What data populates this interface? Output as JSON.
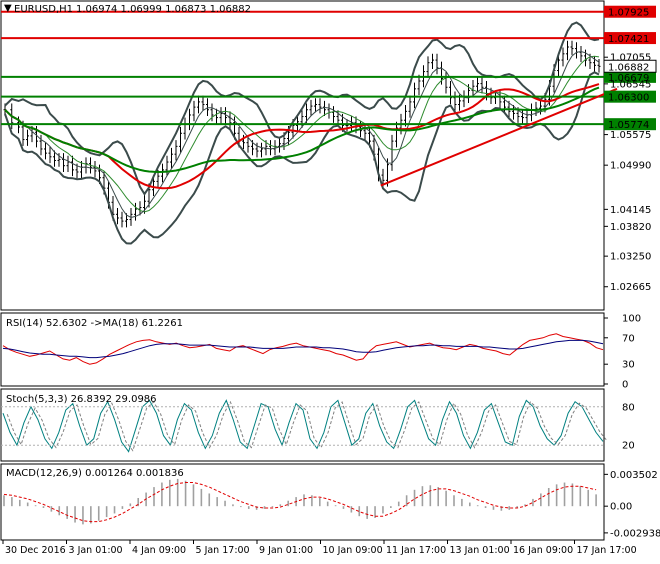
{
  "header": {
    "symbol": "EURUSD,H1",
    "ohlc": "1.06974 1.06999 1.06873 1.06882"
  },
  "colors": {
    "price_bar": "#000000",
    "bollinger": "#3b4b4b",
    "ma_short": "#2e8b2e",
    "ma_red": "#e00000",
    "ma_green": "#008000",
    "support_line": "#008000",
    "resistance_line": "#e00000",
    "trend_line": "#e00000",
    "rsi_main": "#e00000",
    "rsi_ma": "#00007a",
    "stoch_main": "#008080",
    "macd_hist": "#a0a0a0",
    "macd_signal": "#e00000"
  },
  "chart_data": [
    {
      "type": "line",
      "name": "price",
      "title": "EURUSD,H1",
      "ylim": [
        1.0222,
        1.0813
      ],
      "y_ticks": [
        "1.07055",
        "1.06545",
        "1.05575",
        "1.04990",
        "1.04145",
        "1.03820",
        "1.03250",
        "1.02665"
      ],
      "price_path": [
        [
          0,
          1.0605
        ],
        [
          3,
          1.058
        ],
        [
          6,
          1.0572
        ],
        [
          8,
          1.0548
        ],
        [
          10,
          1.0555
        ],
        [
          12,
          1.0562
        ],
        [
          14,
          1.0545
        ],
        [
          16,
          1.053
        ],
        [
          18,
          1.0522
        ],
        [
          20,
          1.0515
        ],
        [
          22,
          1.0508
        ],
        [
          24,
          1.051
        ],
        [
          26,
          1.0498
        ],
        [
          28,
          1.0505
        ],
        [
          30,
          1.049
        ],
        [
          32,
          1.0486
        ],
        [
          34,
          1.0495
        ],
        [
          36,
          1.0502
        ],
        [
          38,
          1.0495
        ],
        [
          40,
          1.0488
        ],
        [
          42,
          1.0475
        ],
        [
          44,
          1.0455
        ],
        [
          46,
          1.0428
        ],
        [
          48,
          1.0405
        ],
        [
          50,
          1.0398
        ],
        [
          52,
          1.0392
        ],
        [
          54,
          1.0395
        ],
        [
          56,
          1.0405
        ],
        [
          58,
          1.0415
        ],
        [
          60,
          1.0418
        ],
        [
          62,
          1.043
        ],
        [
          64,
          1.0452
        ],
        [
          66,
          1.0468
        ],
        [
          68,
          1.0478
        ],
        [
          70,
          1.049
        ],
        [
          72,
          1.0505
        ],
        [
          74,
          1.052
        ],
        [
          76,
          1.0535
        ],
        [
          78,
          1.056
        ],
        [
          80,
          1.0578
        ],
        [
          82,
          1.0595
        ],
        [
          84,
          1.061
        ],
        [
          86,
          1.062
        ],
        [
          88,
          1.0615
        ],
        [
          90,
          1.0605
        ],
        [
          92,
          1.0595
        ],
        [
          94,
          1.059
        ],
        [
          96,
          1.0598
        ],
        [
          98,
          1.059
        ],
        [
          100,
          1.058
        ],
        [
          102,
          1.056
        ],
        [
          104,
          1.0545
        ],
        [
          106,
          1.0542
        ],
        [
          108,
          1.0535
        ],
        [
          110,
          1.053
        ],
        [
          112,
          1.0526
        ],
        [
          114,
          1.053
        ],
        [
          116,
          1.0535
        ],
        [
          118,
          1.053
        ],
        [
          120,
          1.0535
        ],
        [
          122,
          1.054
        ],
        [
          124,
          1.055
        ],
        [
          126,
          1.0562
        ],
        [
          128,
          1.0575
        ],
        [
          130,
          1.0582
        ],
        [
          132,
          1.0592
        ],
        [
          134,
          1.0605
        ],
        [
          136,
          1.0612
        ],
        [
          138,
          1.0615
        ],
        [
          140,
          1.061
        ],
        [
          142,
          1.0605
        ],
        [
          144,
          1.06
        ],
        [
          146,
          1.0592
        ],
        [
          148,
          1.0585
        ],
        [
          150,
          1.0575
        ],
        [
          152,
          1.0575
        ],
        [
          154,
          1.058
        ],
        [
          156,
          1.0572
        ],
        [
          158,
          1.0565
        ],
        [
          160,
          1.056
        ],
        [
          162,
          1.0545
        ],
        [
          164,
          1.052
        ],
        [
          166,
          1.048
        ],
        [
          168,
          1.047
        ],
        [
          170,
          1.05
        ],
        [
          172,
          1.0545
        ],
        [
          174,
          1.057
        ],
        [
          176,
          1.0585
        ],
        [
          178,
          1.0602
        ],
        [
          180,
          1.062
        ],
        [
          182,
          1.0645
        ],
        [
          184,
          1.066
        ],
        [
          186,
          1.0678
        ],
        [
          188,
          1.0695
        ],
        [
          190,
          1.07
        ],
        [
          192,
          1.0685
        ],
        [
          194,
          1.0665
        ],
        [
          196,
          1.0648
        ],
        [
          198,
          1.0628
        ],
        [
          200,
          1.0615
        ],
        [
          202,
          1.0622
        ],
        [
          204,
          1.063
        ],
        [
          206,
          1.0642
        ],
        [
          208,
          1.065
        ],
        [
          210,
          1.0655
        ],
        [
          212,
          1.0648
        ],
        [
          214,
          1.0635
        ],
        [
          216,
          1.0628
        ],
        [
          218,
          1.063
        ],
        [
          220,
          1.062
        ],
        [
          222,
          1.061
        ],
        [
          224,
          1.0602
        ],
        [
          226,
          1.0598
        ],
        [
          228,
          1.0592
        ],
        [
          230,
          1.059
        ],
        [
          232,
          1.0595
        ],
        [
          234,
          1.0605
        ],
        [
          236,
          1.0608
        ],
        [
          238,
          1.0612
        ],
        [
          240,
          1.0625
        ],
        [
          242,
          1.065
        ],
        [
          244,
          1.068
        ],
        [
          246,
          1.07
        ],
        [
          248,
          1.0712
        ],
        [
          250,
          1.0725
        ],
        [
          252,
          1.0722
        ],
        [
          254,
          1.0715
        ],
        [
          256,
          1.0708
        ],
        [
          258,
          1.07
        ],
        [
          260,
          1.0695
        ],
        [
          262,
          1.069
        ],
        [
          264,
          1.0688
        ]
      ],
      "levels": [
        {
          "label": "1.07925",
          "value": 1.07925,
          "color": "#e00000"
        },
        {
          "label": "1.07421",
          "value": 1.07421,
          "color": "#e00000"
        },
        {
          "label": "1.06679",
          "value": 1.06679,
          "color": "#008000"
        },
        {
          "label": "1.06300",
          "value": 1.063,
          "color": "#008000"
        },
        {
          "label": "1.05774",
          "value": 1.05774,
          "color": "#008000"
        }
      ],
      "current_price": "1.06882",
      "trend_line": [
        [
          167,
          1.046
        ],
        [
          272,
          1.0645
        ]
      ],
      "x_ticks": [
        "30 Dec 2016",
        "3 Jan 01:00",
        "4 Jan 09:00",
        "5 Jan 17:00",
        "9 Jan 01:00",
        "10 Jan 09:00",
        "11 Jan 17:00",
        "13 Jan 01:00",
        "16 Jan 09:00",
        "17 Jan 17:00"
      ]
    },
    {
      "type": "line",
      "name": "rsi",
      "title": "RSI(14) 52.6302  ->MA(18) 61.2261",
      "ylim": [
        0,
        100
      ],
      "y_ticks": [
        "100",
        "70",
        "30",
        "0"
      ],
      "values": [
        58,
        52,
        48,
        45,
        42,
        44,
        47,
        50,
        44,
        38,
        36,
        40,
        34,
        30,
        32,
        38,
        45,
        50,
        55,
        60,
        64,
        66,
        67,
        64,
        62,
        60,
        62,
        58,
        55,
        56,
        58,
        60,
        54,
        52,
        50,
        56,
        58,
        54,
        50,
        46,
        52,
        55,
        57,
        60,
        62,
        58,
        56,
        54,
        52,
        50,
        46,
        44,
        40,
        36,
        38,
        50,
        58,
        60,
        62,
        64,
        60,
        56,
        58,
        60,
        62,
        58,
        55,
        54,
        52,
        56,
        60,
        58,
        54,
        52,
        50,
        46,
        44,
        52,
        60,
        66,
        68,
        70,
        74,
        76,
        72,
        70,
        68,
        66,
        62,
        55,
        52
      ],
      "ma_values": [
        54,
        53,
        51,
        49,
        47,
        46,
        45,
        45,
        44,
        43,
        42,
        42,
        41,
        40,
        40,
        41,
        42,
        44,
        46,
        49,
        52,
        55,
        58,
        60,
        61,
        61,
        61,
        60,
        59,
        59,
        59,
        59,
        58,
        57,
        56,
        56,
        56,
        56,
        55,
        54,
        54,
        54,
        54,
        55,
        56,
        56,
        56,
        56,
        55,
        55,
        54,
        53,
        51,
        49,
        48,
        48,
        49,
        51,
        53,
        55,
        56,
        57,
        58,
        58,
        59,
        59,
        58,
        58,
        57,
        57,
        57,
        57,
        56,
        56,
        55,
        54,
        53,
        53,
        54,
        56,
        58,
        60,
        62,
        64,
        65,
        66,
        66,
        66,
        65,
        63,
        61
      ]
    },
    {
      "type": "line",
      "name": "stochastic",
      "title": "Stoch(5,3,3) 26.8392 29.0986",
      "ylim": [
        0,
        100
      ],
      "y_ticks": [
        "80",
        "20"
      ],
      "values": [
        70,
        40,
        20,
        55,
        80,
        60,
        30,
        15,
        40,
        75,
        85,
        50,
        20,
        30,
        70,
        88,
        60,
        25,
        10,
        45,
        80,
        90,
        70,
        35,
        20,
        60,
        85,
        75,
        40,
        15,
        35,
        70,
        90,
        60,
        25,
        15,
        50,
        85,
        80,
        45,
        20,
        55,
        85,
        75,
        30,
        15,
        40,
        80,
        90,
        55,
        20,
        30,
        70,
        85,
        50,
        25,
        15,
        45,
        80,
        90,
        60,
        30,
        20,
        60,
        88,
        70,
        35,
        15,
        40,
        75,
        85,
        55,
        25,
        20,
        65,
        90,
        80,
        50,
        30,
        20,
        35,
        70,
        88,
        80,
        60,
        40,
        26
      ]
    },
    {
      "type": "bar",
      "name": "macd",
      "title": "MACD(12,26,9) 0.001264 0.001836",
      "ylim": [
        -0.0035,
        0.0042
      ],
      "y_ticks": [
        "0.003502",
        "0.00",
        "-0.002938"
      ],
      "values": [
        0.0012,
        0.001,
        0.0007,
        0.0004,
        0.0001,
        -0.0002,
        -0.0006,
        -0.001,
        -0.0014,
        -0.0018,
        -0.002,
        -0.0019,
        -0.0016,
        -0.0012,
        -0.0008,
        -0.0003,
        0.0003,
        0.0009,
        0.0015,
        0.0021,
        0.0026,
        0.0029,
        0.003,
        0.0028,
        0.0024,
        0.0019,
        0.0014,
        0.001,
        0.0006,
        0.0002,
        -0.0001,
        -0.0003,
        -0.0004,
        -0.0003,
        -0.0001,
        0.0002,
        0.0006,
        0.001,
        0.0013,
        0.0012,
        0.0009,
        0.0005,
        0.0001,
        -0.0003,
        -0.0007,
        -0.0011,
        -0.0014,
        -0.0013,
        -0.0008,
        -0.0002,
        0.0005,
        0.0012,
        0.0018,
        0.0022,
        0.0023,
        0.0021,
        0.0017,
        0.0012,
        0.0008,
        0.0004,
        0.0001,
        -0.0002,
        -0.0004,
        -0.0005,
        -0.0004,
        -0.0002,
        0.0002,
        0.0008,
        0.0014,
        0.002,
        0.0024,
        0.0026,
        0.0025,
        0.0022,
        0.0018,
        0.0013
      ],
      "signal": [
        0.0013,
        0.0012,
        0.001,
        0.0008,
        0.0005,
        0.0002,
        -0.0002,
        -0.0006,
        -0.001,
        -0.0013,
        -0.0016,
        -0.0017,
        -0.0017,
        -0.0015,
        -0.0012,
        -0.0008,
        -0.0003,
        0.0002,
        0.0008,
        0.0013,
        0.0018,
        0.0022,
        0.0025,
        0.0026,
        0.0026,
        0.0024,
        0.0021,
        0.0017,
        0.0013,
        0.0009,
        0.0005,
        0.0002,
        -0.0001,
        -0.0002,
        -0.0002,
        -0.0001,
        0.0002,
        0.0005,
        0.0008,
        0.001,
        0.001,
        0.0008,
        0.0005,
        0.0002,
        -0.0002,
        -0.0006,
        -0.0009,
        -0.0011,
        -0.0011,
        -0.0008,
        -0.0004,
        0.0002,
        0.0008,
        0.0013,
        0.0017,
        0.0019,
        0.0019,
        0.0017,
        0.0014,
        0.0011,
        0.0007,
        0.0004,
        0.0001,
        -0.0001,
        -0.0002,
        -0.0002,
        0.0,
        0.0004,
        0.0009,
        0.0014,
        0.0018,
        0.0021,
        0.0022,
        0.0022,
        0.002,
        0.0018
      ]
    }
  ]
}
